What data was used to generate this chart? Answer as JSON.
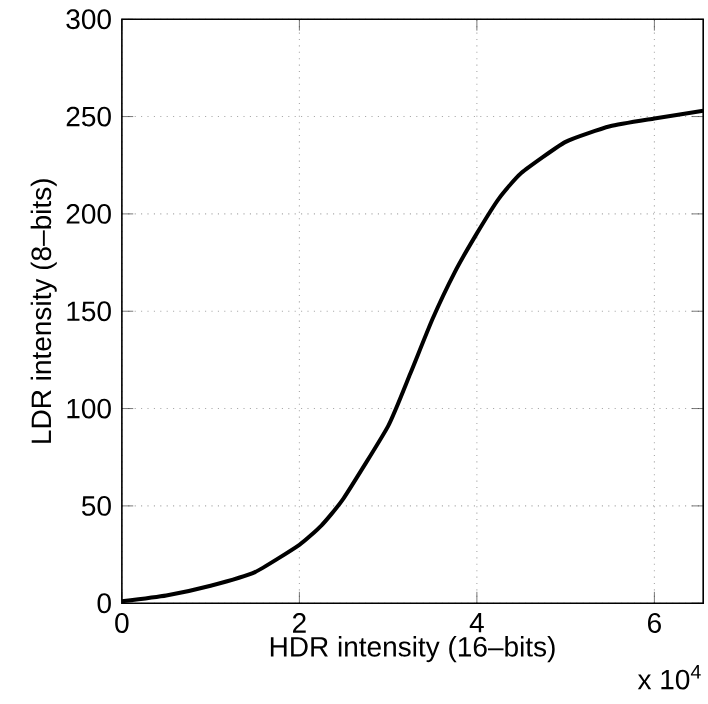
{
  "chart_data": {
    "type": "line",
    "xlabel": "HDR intensity (16–bits)",
    "ylabel": "LDR intensity (8–bits)",
    "annotations": [
      "x 10$^{4}$"
    ],
    "x": [
      0,
      0.5,
      1,
      1.5,
      2,
      2.25,
      2.5,
      3,
      3.25,
      3.5,
      3.75,
      4,
      4.25,
      4.5,
      5,
      5.5,
      6,
      6.55
    ],
    "series": [
      {
        "color": "#000000",
        "values": [
          1,
          4,
          9,
          16,
          30,
          40,
          54,
          91,
          118,
          146,
          170,
          190,
          208,
          221,
          237,
          245,
          249,
          253
        ]
      }
    ],
    "xlim": [
      0,
      6.55
    ],
    "ylim": [
      0,
      300
    ],
    "xticks": [
      0,
      2,
      4,
      6
    ],
    "yticks": [
      0,
      50,
      100,
      150,
      200,
      250,
      300
    ],
    "grid": true,
    "line_style": "solid"
  }
}
